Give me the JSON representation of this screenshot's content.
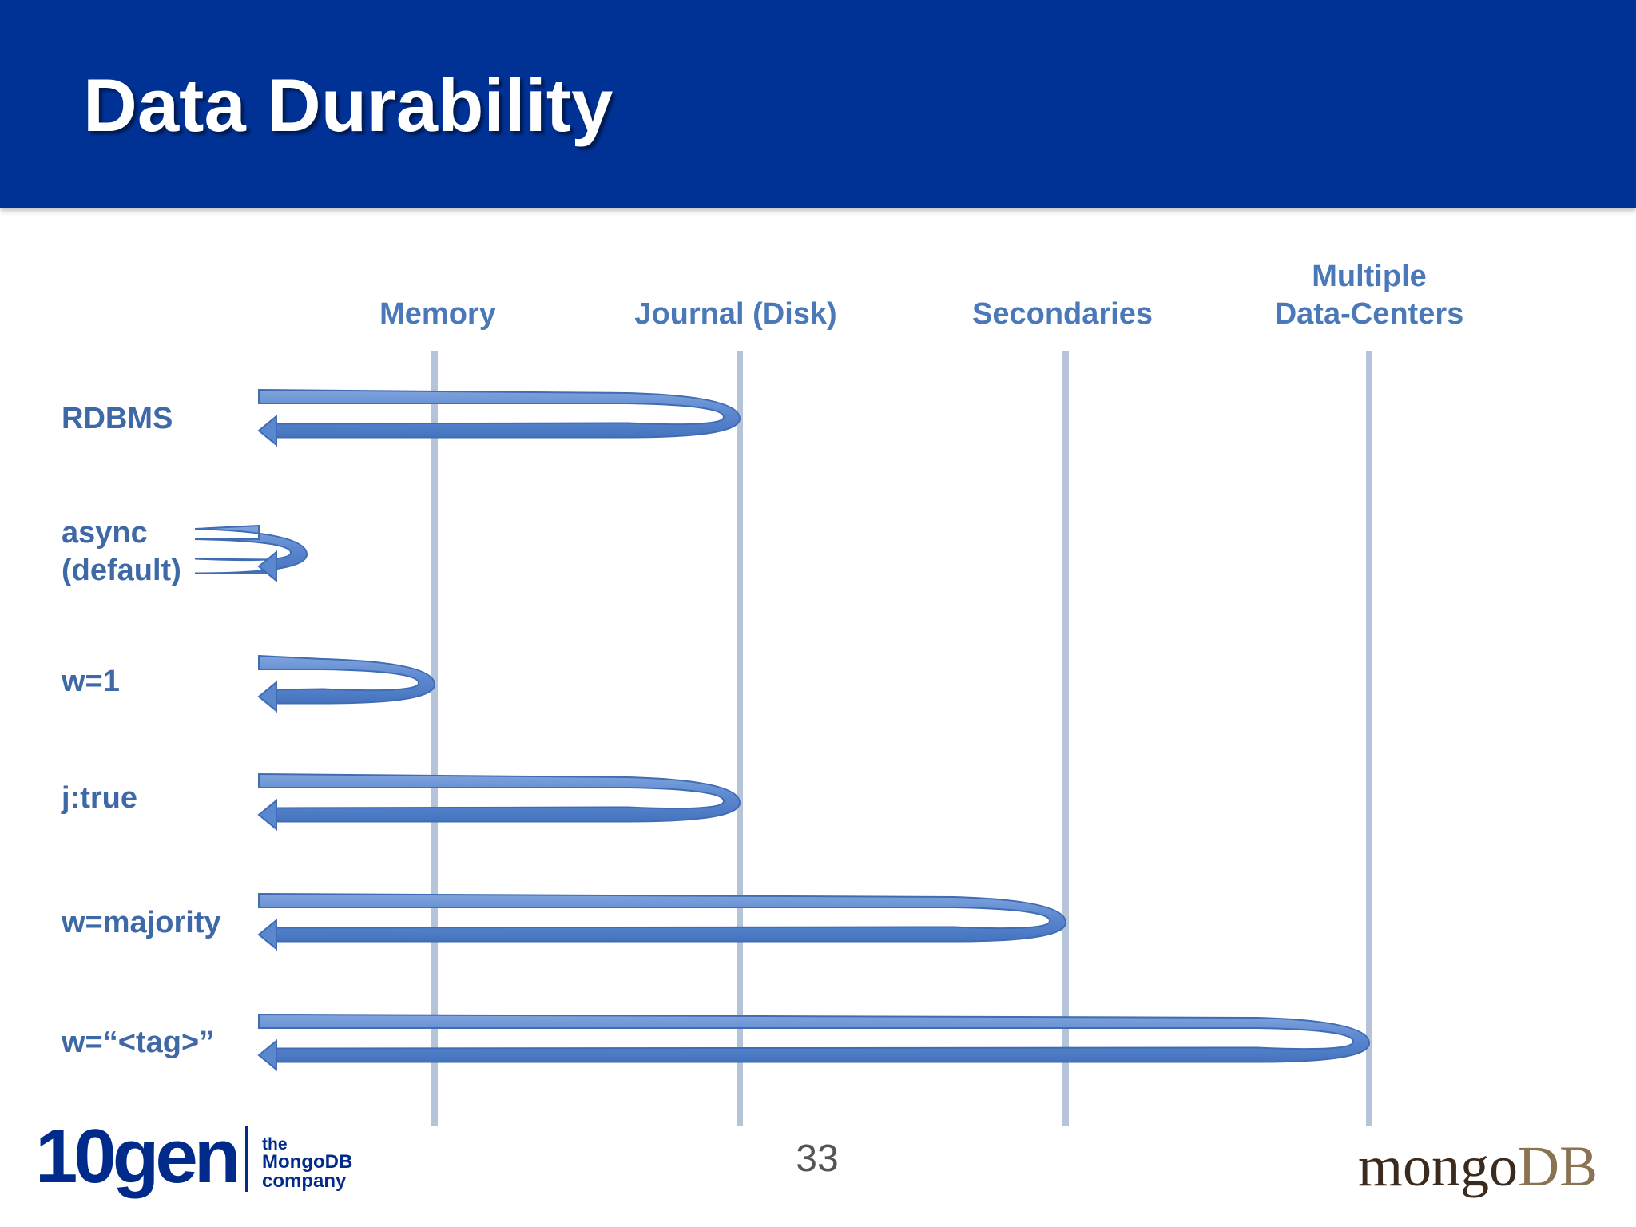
{
  "slide": {
    "title": "Data Durability",
    "page_number": "33"
  },
  "columns": [
    {
      "id": "memory",
      "label_lines": [
        "Memory"
      ]
    },
    {
      "id": "journal",
      "label_lines": [
        "Journal (Disk)"
      ]
    },
    {
      "id": "secondaries",
      "label_lines": [
        "Secondaries"
      ]
    },
    {
      "id": "multi_dc",
      "label_lines": [
        "Multiple",
        "Data-Centers"
      ]
    }
  ],
  "rows": [
    {
      "id": "rdbms",
      "label_lines": [
        "RDBMS"
      ],
      "acknowledged_at": "journal"
    },
    {
      "id": "async",
      "label_lines": [
        "async",
        "(default)"
      ],
      "acknowledged_at": "none"
    },
    {
      "id": "w1",
      "label_lines": [
        "w=1"
      ],
      "acknowledged_at": "memory"
    },
    {
      "id": "jtrue",
      "label_lines": [
        "j:true"
      ],
      "acknowledged_at": "journal"
    },
    {
      "id": "wmajority",
      "label_lines": [
        "w=majority"
      ],
      "acknowledged_at": "secondaries"
    },
    {
      "id": "wtag",
      "label_lines": [
        "w=“<tag>”"
      ],
      "acknowledged_at": "multi_dc"
    }
  ],
  "footer": {
    "logo_left": "10gen",
    "tagline_lines": [
      "the",
      "MongoDB",
      "company"
    ],
    "logo_right_a": "mongo",
    "logo_right_b": "DB"
  },
  "colors": {
    "header_bg": "#003195",
    "arrow_fill": "#5b87cf",
    "arrow_stroke": "#3f6cb3",
    "column_line": "#b5c4d8",
    "label_text": "#3e69a6"
  }
}
